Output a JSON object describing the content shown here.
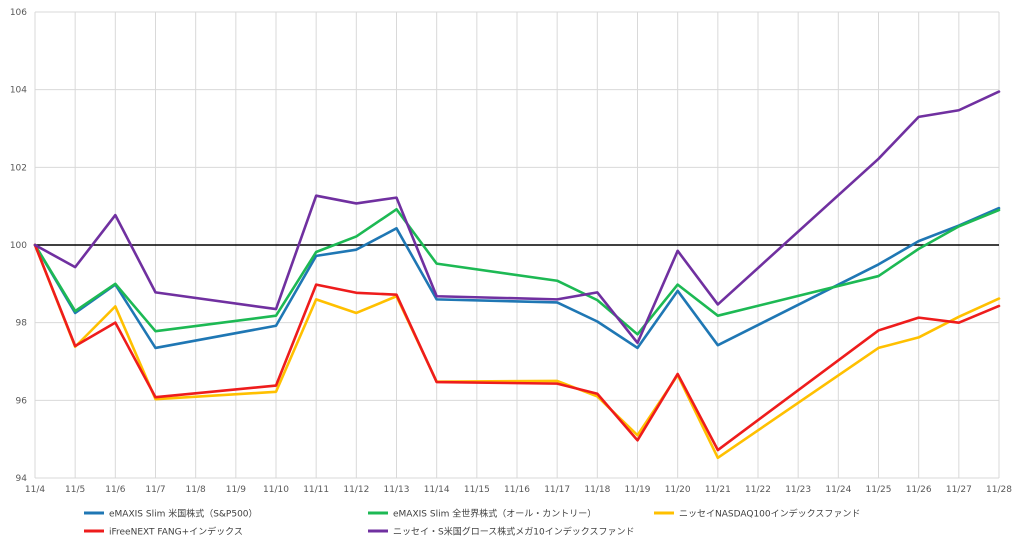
{
  "chart_data": {
    "type": "line",
    "title": "",
    "xlabel": "",
    "ylabel": "",
    "ylim": [
      94,
      106
    ],
    "yticks": [
      "94",
      "96",
      "98",
      "100",
      "102",
      "104",
      "106"
    ],
    "categories": [
      "11/4",
      "11/5",
      "11/6",
      "11/7",
      "11/8",
      "11/9",
      "11/10",
      "11/11",
      "11/12",
      "11/13",
      "11/14",
      "11/15",
      "11/16",
      "11/17",
      "11/18",
      "11/19",
      "11/20",
      "11/21",
      "11/22",
      "11/23",
      "11/24",
      "11/25",
      "11/26",
      "11/27",
      "11/28"
    ],
    "reference_line": 100,
    "grid": true,
    "legend_position": "bottom",
    "series": [
      {
        "name": "eMAXIS Slim 米国株式（S&P500）",
        "color": "#1f77b4",
        "values": [
          100,
          98.25,
          98.98,
          97.35,
          null,
          null,
          97.92,
          99.72,
          99.88,
          100.43,
          98.6,
          null,
          null,
          98.52,
          98.03,
          97.35,
          98.82,
          97.42,
          null,
          null,
          null,
          99.5,
          100.1,
          100.5,
          100.95
        ]
      },
      {
        "name": "eMAXIS Slim 全世界株式（オール・カントリー）",
        "color": "#1db954",
        "values": [
          100,
          98.3,
          99.0,
          97.78,
          null,
          null,
          98.18,
          99.82,
          100.22,
          100.92,
          99.52,
          null,
          null,
          99.08,
          98.58,
          97.7,
          98.98,
          98.18,
          null,
          null,
          null,
          99.2,
          99.9,
          100.48,
          100.9
        ]
      },
      {
        "name": "ニッセイNASDAQ100インデックスファンド",
        "color": "#ffc000",
        "values": [
          100,
          97.38,
          98.42,
          96.03,
          null,
          null,
          96.22,
          98.6,
          98.25,
          98.68,
          96.48,
          null,
          null,
          96.5,
          96.1,
          95.1,
          96.65,
          94.52,
          null,
          null,
          null,
          97.35,
          97.62,
          98.15,
          98.62
        ]
      },
      {
        "name": "iFreeNEXT FANG+インデックス",
        "color": "#ee1c1c",
        "values": [
          100,
          97.4,
          98.0,
          96.08,
          null,
          null,
          96.38,
          98.98,
          98.77,
          98.72,
          96.47,
          null,
          null,
          96.43,
          96.17,
          94.97,
          96.68,
          94.72,
          null,
          null,
          null,
          97.8,
          98.13,
          98.0,
          98.43
        ]
      },
      {
        "name": "ニッセイ・S米国グロース株式メガ10インデックスファンド",
        "color": "#7030a0",
        "values": [
          100,
          99.43,
          100.77,
          98.78,
          null,
          null,
          98.35,
          101.27,
          101.07,
          101.22,
          98.68,
          null,
          null,
          98.6,
          98.78,
          97.48,
          99.85,
          98.47,
          null,
          null,
          null,
          102.22,
          103.3,
          103.47,
          103.95
        ]
      }
    ]
  }
}
